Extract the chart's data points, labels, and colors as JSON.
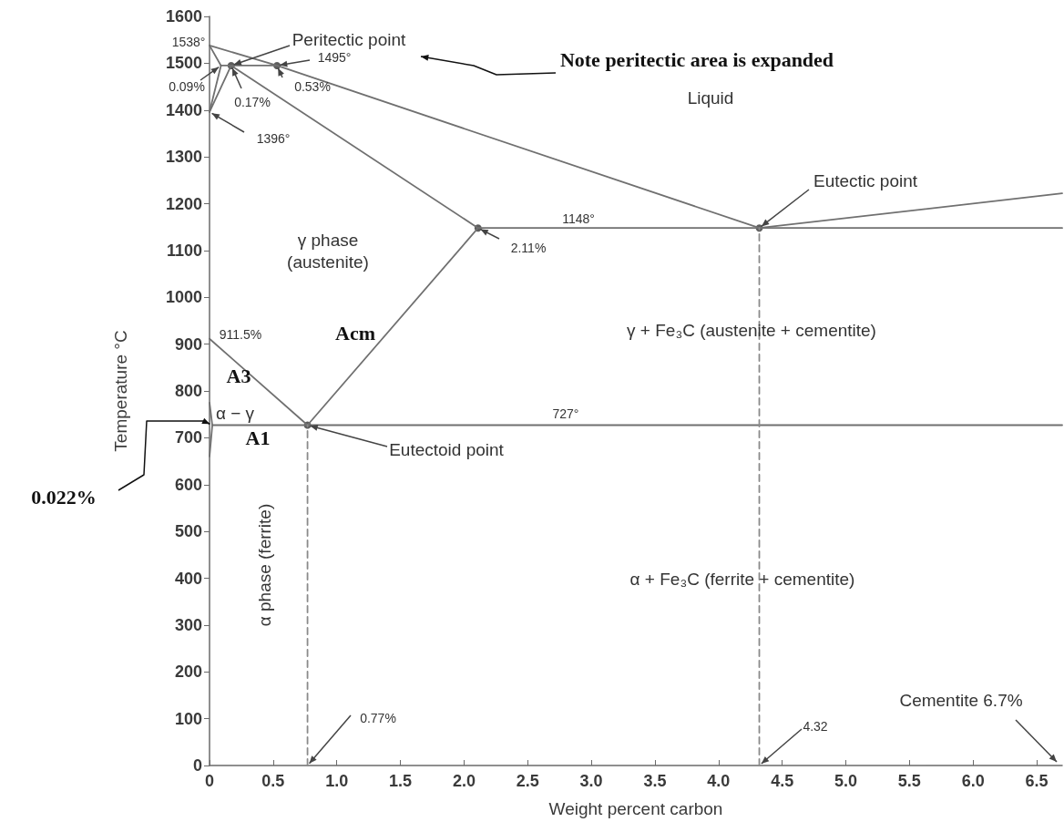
{
  "chart_data": {
    "type": "line",
    "xlabel": "Weight percent carbon",
    "ylabel": "Temperature °C",
    "xlim": [
      0,
      6.7
    ],
    "ylim": [
      0,
      1600
    ],
    "xticks": [
      0,
      {
        "value": 0.5,
        "label": "0.5"
      },
      {
        "value": 1,
        "label": "1.0"
      },
      {
        "value": 1.5,
        "label": "1.5"
      },
      {
        "value": 2,
        "label": "2.0"
      },
      {
        "value": 2.5,
        "label": "2.5"
      },
      {
        "value": 3,
        "label": "3.0"
      },
      {
        "value": 3.5,
        "label": "3.5"
      },
      {
        "value": 4,
        "label": "4.0"
      },
      {
        "value": 4.5,
        "label": "4.5"
      },
      {
        "value": 5,
        "label": "5.0"
      },
      {
        "value": 5.5,
        "label": "5.5"
      },
      {
        "value": 6,
        "label": "6.0"
      },
      {
        "value": 6.5,
        "label": "6.5"
      }
    ],
    "yticks": [
      0,
      100,
      200,
      300,
      400,
      500,
      600,
      700,
      800,
      900,
      1000,
      1100,
      1200,
      1300,
      1400,
      1500,
      1600
    ],
    "grid": false,
    "marker": "none",
    "line_style": "solid",
    "series": [
      {
        "color": "#707070",
        "x": [
          0,
          0.53,
          4.32,
          6.7
        ],
        "values": [
          1538,
          1495,
          1148,
          1222
        ]
      },
      {
        "color": "#707070",
        "x": [
          0,
          0.09
        ],
        "values": [
          1538,
          1495
        ]
      },
      {
        "color": "#707070",
        "x": [
          0.09,
          0.53
        ],
        "values": [
          1495,
          1495
        ]
      },
      {
        "color": "#707070",
        "x": [
          0,
          0.09
        ],
        "values": [
          1396,
          1495
        ]
      },
      {
        "color": "#707070",
        "x": [
          0,
          0.17
        ],
        "values": [
          1396,
          1495
        ]
      },
      {
        "color": "#707070",
        "x": [
          0.17,
          2.11
        ],
        "values": [
          1495,
          1148
        ]
      },
      {
        "color": "#707070",
        "x": [
          2.11,
          6.7
        ],
        "values": [
          1148,
          1148
        ]
      },
      {
        "color": "#707070",
        "x": [
          0.77,
          2.11
        ],
        "values": [
          727,
          1148
        ]
      },
      {
        "color": "#707070",
        "x": [
          0,
          0.77
        ],
        "values": [
          911.5,
          727
        ]
      },
      {
        "color": "#707070",
        "x": [
          0.022,
          6.7
        ],
        "values": [
          727,
          727
        ]
      },
      {
        "color": "#707070",
        "x": [
          0,
          0.022,
          0
        ],
        "values": [
          775,
          727,
          660
        ]
      },
      {
        "color": "#8a8a8a",
        "line_style": "dashed",
        "x": [
          0.77,
          0.77
        ],
        "values": [
          0,
          727
        ]
      },
      {
        "color": "#8a8a8a",
        "line_style": "dashed",
        "x": [
          4.32,
          4.32
        ],
        "values": [
          0,
          1148
        ]
      },
      {
        "type": "scatter",
        "marker": "circle",
        "color": "#333333",
        "x": [
          0.17,
          0.53,
          2.11,
          4.32,
          0.77
        ],
        "values": [
          1495,
          1495,
          1148,
          1148,
          727
        ]
      }
    ],
    "annotations": [
      {
        "text": "Peritectic point",
        "x": 0.17,
        "y": 1495
      },
      {
        "text": "1495°",
        "x": 0.53,
        "y": 1495
      },
      {
        "text": "0.09%",
        "x": 0.09,
        "y": 1495
      },
      {
        "text": "0.17%",
        "x": 0.17,
        "y": 1495
      },
      {
        "text": "0.53%",
        "x": 0.53,
        "y": 1495
      },
      {
        "text": "1396°",
        "x": 0,
        "y": 1396
      },
      {
        "text": "1538°",
        "x": 0,
        "y": 1538
      },
      "Note peritectic area is expanded",
      "Liquid",
      {
        "text": "Eutectic point",
        "x": 4.32,
        "y": 1148
      },
      {
        "text": "1148°",
        "x": 2.9,
        "y": 1148
      },
      "γ phase\n(austenite)",
      {
        "text": "2.11%",
        "x": 2.11,
        "y": 1148
      },
      "Acm",
      {
        "text": "911.5%",
        "x": 0,
        "y": 911.5
      },
      "γ + Fe₃C (austenite + cementite)",
      "A3",
      "α − γ",
      {
        "text": "727°",
        "x": 2.8,
        "y": 727
      },
      "A1",
      {
        "text": "Eutectoid point",
        "x": 0.77,
        "y": 727
      },
      {
        "text": "0.022%",
        "x": 0.022,
        "y": 727
      },
      "α phase (ferrite)",
      "α + Fe₃C (ferrite + cementite)",
      {
        "text": "0.77%",
        "x": 0.77,
        "y": 0
      },
      {
        "text": "4.32",
        "x": 4.32,
        "y": 0
      },
      "Cementite 6.7%"
    ]
  }
}
